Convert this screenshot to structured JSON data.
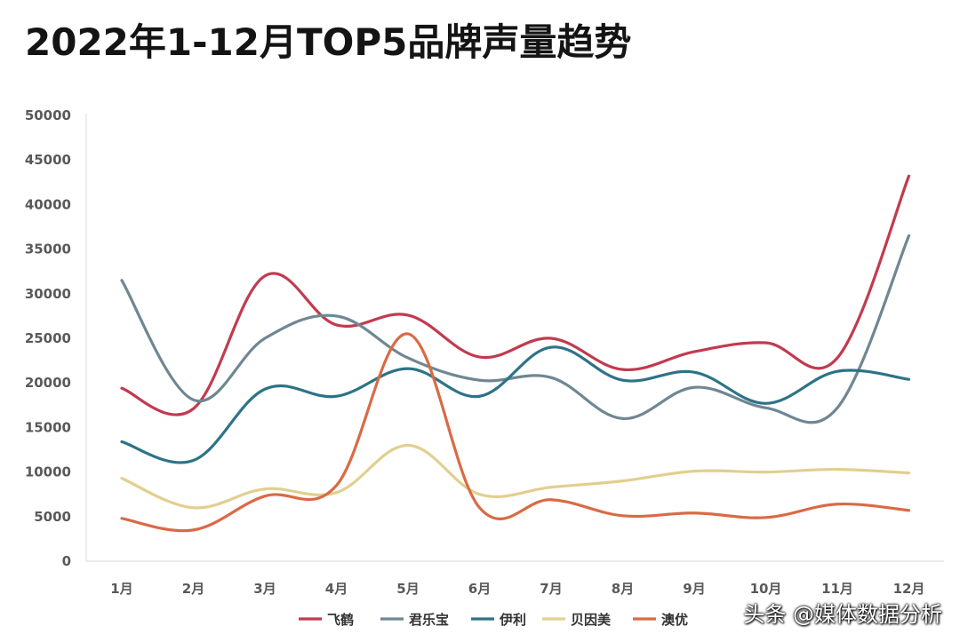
{
  "title": "2022年1-12月TOP5品牌声量趋势",
  "watermark": "头条 @媒体数据分析",
  "chart_data": {
    "type": "line",
    "smooth": true,
    "categories": [
      "1月",
      "2月",
      "3月",
      "4月",
      "5月",
      "6月",
      "7月",
      "8月",
      "9月",
      "10月",
      "11月",
      "12月"
    ],
    "ylim": [
      0,
      50000
    ],
    "yticks": [
      0,
      5000,
      10000,
      15000,
      20000,
      25000,
      30000,
      35000,
      40000,
      45000,
      50000
    ],
    "grid": false,
    "legend_position": "bottom",
    "series": [
      {
        "name": "飞鹤",
        "color": "#C23A4F",
        "values": [
          19400,
          17100,
          32000,
          26500,
          27600,
          22900,
          25000,
          21500,
          23500,
          24500,
          22800,
          43200
        ]
      },
      {
        "name": "君乐宝",
        "color": "#6F8793",
        "values": [
          31500,
          18100,
          25000,
          27500,
          22800,
          20300,
          20600,
          16000,
          19500,
          17200,
          17200,
          36500
        ]
      },
      {
        "name": "伊利",
        "color": "#2D7387",
        "values": [
          13400,
          11300,
          19300,
          18500,
          21600,
          18500,
          24000,
          20300,
          21200,
          17700,
          21300,
          20400
        ]
      },
      {
        "name": "贝因美",
        "color": "#E2CF8E",
        "values": [
          9300,
          6000,
          8100,
          7700,
          13000,
          7500,
          8300,
          9000,
          10100,
          10000,
          10300,
          9900
        ]
      },
      {
        "name": "澳优",
        "color": "#D96A46",
        "values": [
          4800,
          3500,
          7300,
          8500,
          25500,
          6000,
          6900,
          5100,
          5400,
          4900,
          6400,
          5700
        ]
      }
    ]
  }
}
